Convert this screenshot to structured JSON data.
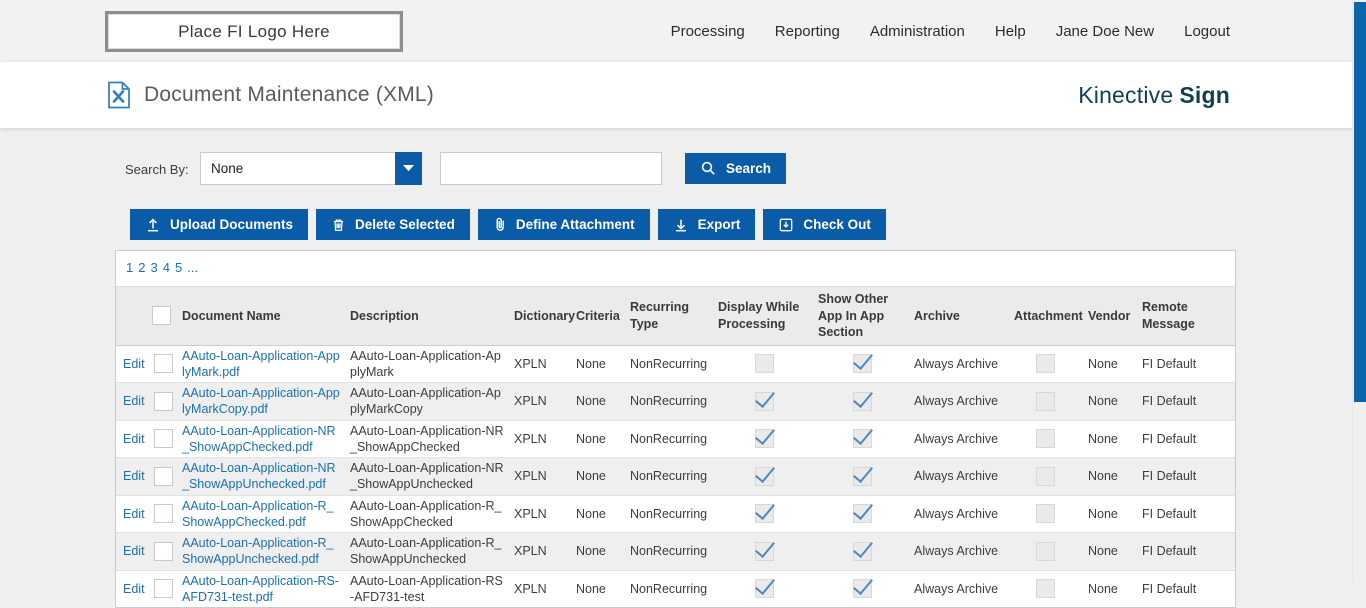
{
  "colors": {
    "primary_blue": "#0a5ba8",
    "link_blue": "#1a70b2",
    "check_blue": "#4f88bd",
    "brand_teal": "#123f4e",
    "scrollbar_thumb": "#0a64ae"
  },
  "top_nav": {
    "logo_text": "Place FI Logo Here",
    "items": [
      "Processing",
      "Reporting",
      "Administration",
      "Help",
      "Jane Doe New",
      "Logout"
    ]
  },
  "header": {
    "title": "Document Maintenance (XML)",
    "brand_regular": "Kinective",
    "brand_bold": "Sign"
  },
  "search": {
    "label": "Search By:",
    "dropdown_value": "None",
    "input_value": "",
    "button_label": "Search"
  },
  "toolbar": {
    "buttons": [
      {
        "label": "Upload Documents",
        "icon": "upload-icon"
      },
      {
        "label": "Delete Selected",
        "icon": "trash-icon"
      },
      {
        "label": "Define Attachment",
        "icon": "paperclip-icon"
      },
      {
        "label": "Export",
        "icon": "export-icon"
      },
      {
        "label": "Check Out",
        "icon": "checkout-icon"
      }
    ]
  },
  "pagination": {
    "pages": [
      "1",
      "2",
      "3",
      "4",
      "5",
      "..."
    ]
  },
  "table": {
    "edit_label": "Edit",
    "columns": {
      "document_name": "Document Name",
      "description": "Description",
      "dictionary": "Dictionary",
      "criteria": "Criteria",
      "recurring_type": "Recurring Type",
      "display_while_processing": "Display While Processing",
      "show_other_app": "Show Other App In App Section",
      "archive": "Archive",
      "attachment": "Attachment",
      "vendor": "Vendor",
      "remote_message": "Remote Message"
    },
    "rows": [
      {
        "name": "AAuto-Loan-Application-ApplyMark.pdf",
        "description": "AAuto-Loan-Application-ApplyMark",
        "dictionary": "XPLN",
        "criteria": "None",
        "recurring_type": "NonRecurring",
        "display_while_processing": false,
        "show_other_app": true,
        "archive": "Always Archive",
        "attachment": false,
        "vendor": "None",
        "remote_message": "FI Default",
        "selected": false
      },
      {
        "name": "AAuto-Loan-Application-ApplyMarkCopy.pdf",
        "description": "AAuto-Loan-Application-ApplyMarkCopy",
        "dictionary": "XPLN",
        "criteria": "None",
        "recurring_type": "NonRecurring",
        "display_while_processing": true,
        "show_other_app": true,
        "archive": "Always Archive",
        "attachment": false,
        "vendor": "None",
        "remote_message": "FI Default",
        "selected": false
      },
      {
        "name": "AAuto-Loan-Application-NR_ShowAppChecked.pdf",
        "description": "AAuto-Loan-Application-NR_ShowAppChecked",
        "dictionary": "XPLN",
        "criteria": "None",
        "recurring_type": "NonRecurring",
        "display_while_processing": true,
        "show_other_app": true,
        "archive": "Always Archive",
        "attachment": false,
        "vendor": "None",
        "remote_message": "FI Default",
        "selected": false
      },
      {
        "name": "AAuto-Loan-Application-NR_ShowAppUnchecked.pdf",
        "description": "AAuto-Loan-Application-NR_ShowAppUnchecked",
        "dictionary": "XPLN",
        "criteria": "None",
        "recurring_type": "NonRecurring",
        "display_while_processing": true,
        "show_other_app": true,
        "archive": "Always Archive",
        "attachment": false,
        "vendor": "None",
        "remote_message": "FI Default",
        "selected": false
      },
      {
        "name": "AAuto-Loan-Application-R_ShowAppChecked.pdf",
        "description": "AAuto-Loan-Application-R_ShowAppChecked",
        "dictionary": "XPLN",
        "criteria": "None",
        "recurring_type": "NonRecurring",
        "display_while_processing": true,
        "show_other_app": true,
        "archive": "Always Archive",
        "attachment": false,
        "vendor": "None",
        "remote_message": "FI Default",
        "selected": false
      },
      {
        "name": "AAuto-Loan-Application-R_ShowAppUnchecked.pdf",
        "description": "AAuto-Loan-Application-R_ShowAppUnchecked",
        "dictionary": "XPLN",
        "criteria": "None",
        "recurring_type": "NonRecurring",
        "display_while_processing": true,
        "show_other_app": true,
        "archive": "Always Archive",
        "attachment": false,
        "vendor": "None",
        "remote_message": "FI Default",
        "selected": false
      },
      {
        "name": "AAuto-Loan-Application-RS-AFD731-test.pdf",
        "description": "AAuto-Loan-Application-RS-AFD731-test",
        "dictionary": "XPLN",
        "criteria": "None",
        "recurring_type": "NonRecurring",
        "display_while_processing": true,
        "show_other_app": true,
        "archive": "Always Archive",
        "attachment": false,
        "vendor": "None",
        "remote_message": "FI Default",
        "selected": false
      }
    ]
  }
}
